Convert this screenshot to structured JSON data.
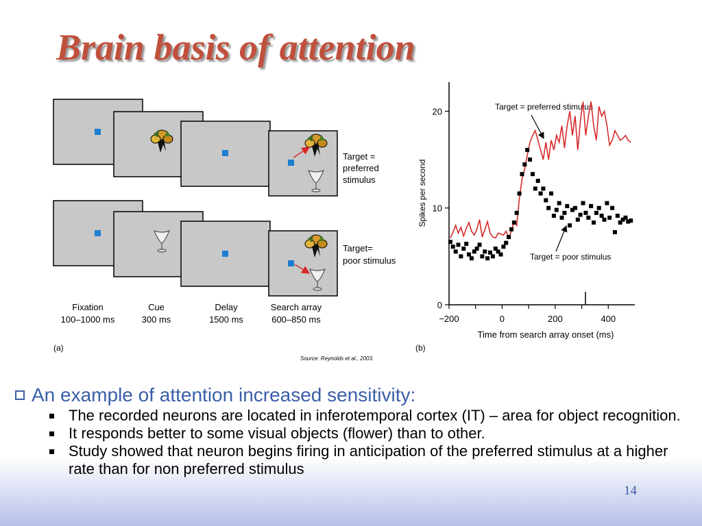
{
  "slide": {
    "title": "Brain basis of attention",
    "page_number": "14"
  },
  "panel_a": {
    "label": "(a)",
    "row1_target_label": [
      "Target =",
      "preferred",
      "stimulus"
    ],
    "row2_target_label": [
      "Target=",
      "poor stimulus"
    ],
    "phases": [
      {
        "name": "Fixation",
        "duration": "100–1000 ms"
      },
      {
        "name": "Cue",
        "duration": "300 ms"
      },
      {
        "name": "Delay",
        "duration": "1500 ms"
      },
      {
        "name": "Search array",
        "duration": "600–850 ms"
      }
    ],
    "source": "Source: Reynolds et al., 2003."
  },
  "panel_b": {
    "label": "(b)"
  },
  "chart_data": {
    "type": "line",
    "title": "",
    "xlabel": "Time from search array onset (ms)",
    "ylabel": "Spikes per second",
    "xlim": [
      -200,
      500
    ],
    "ylim": [
      0,
      23
    ],
    "xticks": [
      -200,
      0,
      200,
      400
    ],
    "yticks": [
      0,
      10,
      20
    ],
    "grid": false,
    "annotations": [
      "Target = preferred stimulus",
      "Target = poor stimulus"
    ],
    "series": [
      {
        "name": "Target = preferred stimulus",
        "style": "line",
        "color": "#d62a2a",
        "x": [
          -195,
          -185,
          -175,
          -165,
          -155,
          -145,
          -135,
          -125,
          -115,
          -105,
          -95,
          -85,
          -75,
          -65,
          -55,
          -45,
          -35,
          -25,
          -15,
          -5,
          5,
          15,
          25,
          35,
          45,
          55,
          65,
          75,
          85,
          95,
          105,
          115,
          125,
          135,
          145,
          155,
          165,
          175,
          185,
          195,
          205,
          215,
          225,
          235,
          245,
          255,
          265,
          275,
          285,
          295,
          305,
          315,
          325,
          335,
          345,
          355,
          365,
          375,
          385,
          395,
          405,
          415,
          425,
          435,
          445,
          455,
          465,
          475,
          485
        ],
        "y": [
          6.9,
          7.5,
          8.2,
          7.4,
          8.0,
          7.1,
          7.9,
          8.5,
          7.6,
          7.2,
          7.8,
          8.8,
          7.0,
          7.8,
          8.6,
          7.4,
          7.0,
          6.9,
          7.4,
          7.3,
          7.2,
          7.6,
          6.9,
          7.6,
          8.6,
          8.2,
          11.0,
          13.0,
          14.0,
          15.5,
          16.8,
          17.5,
          18.0,
          17.0,
          16.0,
          15.0,
          16.8,
          15.0,
          17.0,
          16.0,
          17.5,
          16.8,
          18.5,
          16.2,
          18.5,
          20.0,
          17.5,
          19.5,
          16.0,
          19.0,
          21.0,
          17.5,
          19.5,
          21.0,
          18.5,
          17.0,
          20.5,
          19.5,
          20.0,
          18.5,
          16.5,
          17.0,
          18.0,
          17.5,
          17.0,
          17.2,
          17.5,
          17.0,
          16.8
        ]
      },
      {
        "name": "Target = poor stimulus",
        "style": "scatter",
        "color": "#000000",
        "x": [
          -195,
          -185,
          -175,
          -165,
          -155,
          -145,
          -135,
          -125,
          -115,
          -105,
          -95,
          -85,
          -75,
          -65,
          -55,
          -45,
          -35,
          -25,
          -15,
          -5,
          5,
          15,
          25,
          35,
          45,
          55,
          65,
          75,
          85,
          95,
          105,
          115,
          125,
          135,
          145,
          155,
          165,
          175,
          185,
          195,
          205,
          215,
          225,
          235,
          245,
          255,
          265,
          275,
          285,
          295,
          305,
          315,
          325,
          335,
          345,
          355,
          365,
          375,
          385,
          395,
          405,
          415,
          425,
          435,
          445,
          455,
          465,
          475,
          485
        ],
        "y": [
          6.5,
          6.0,
          5.5,
          6.2,
          5.0,
          5.8,
          6.3,
          5.2,
          4.8,
          5.5,
          5.8,
          6.2,
          5.0,
          5.5,
          4.8,
          5.4,
          5.0,
          5.8,
          5.5,
          5.2,
          6.0,
          6.4,
          7.0,
          7.8,
          8.5,
          9.5,
          11.5,
          13.5,
          14.5,
          16.0,
          15.0,
          13.5,
          12.0,
          12.8,
          11.5,
          12.0,
          10.8,
          10.0,
          11.5,
          9.2,
          9.8,
          10.5,
          9.0,
          9.5,
          10.2,
          8.2,
          9.8,
          10.0,
          8.8,
          9.3,
          10.5,
          9.5,
          9.0,
          10.2,
          8.5,
          9.5,
          10.0,
          9.2,
          8.8,
          10.5,
          9.0,
          10.0,
          7.5,
          9.2,
          8.5,
          8.8,
          9.0,
          8.6,
          8.7
        ]
      }
    ]
  },
  "bullets": {
    "main": "An example of attention increased sensitivity:",
    "items": [
      "The recorded neurons are located in inferotemporal cortex (IT) – area for object recognition.",
      "It responds better to some visual objects (flower) than to other.",
      "Study showed that neuron begins firing in anticipation of the preferred stimulus at a higher rate than for non preferred stimulus"
    ]
  }
}
